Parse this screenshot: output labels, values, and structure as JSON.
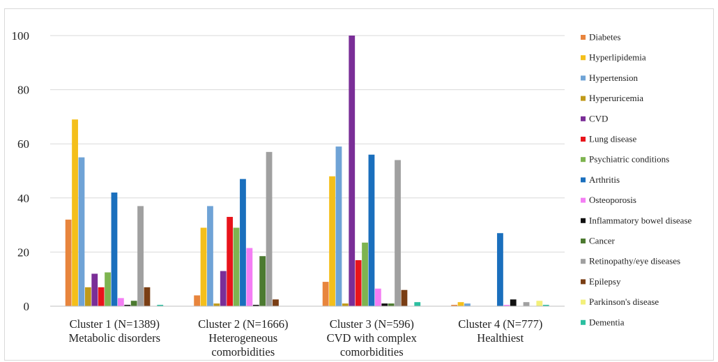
{
  "chart_data": {
    "type": "bar",
    "title": "",
    "xlabel": "",
    "ylabel": "",
    "ylim": [
      0,
      100
    ],
    "yticks": [
      0,
      20,
      40,
      60,
      80,
      100
    ],
    "grid": true,
    "legend_position": "right",
    "categories": [
      [
        "Cluster 1 (N=1389)",
        "Metabolic disorders"
      ],
      [
        "Cluster 2 (N=1666)",
        "Heterogeneous",
        "comorbidities"
      ],
      [
        "Cluster 3 (N=596)",
        "CVD with complex",
        "comorbidities"
      ],
      [
        "Cluster 4 (N=777)",
        "Healthiest"
      ]
    ],
    "series": [
      {
        "name": "Diabetes",
        "color": "#e8853d",
        "values": [
          32,
          4,
          9,
          0.5
        ]
      },
      {
        "name": "Hyperlipidemia",
        "color": "#f4bf1b",
        "values": [
          69,
          29,
          48,
          1.5
        ]
      },
      {
        "name": "Hypertension",
        "color": "#6fa3d6",
        "values": [
          55,
          37,
          59,
          1
        ]
      },
      {
        "name": "Hyperuricemia",
        "color": "#c09a1a",
        "values": [
          7,
          1,
          1,
          0
        ]
      },
      {
        "name": "CVD",
        "color": "#7a2e97",
        "values": [
          12,
          13,
          100,
          0
        ]
      },
      {
        "name": "Lung disease",
        "color": "#e8141b",
        "values": [
          7,
          33,
          17,
          0
        ]
      },
      {
        "name": "Psychiatric conditions",
        "color": "#7eb450",
        "values": [
          12.5,
          29,
          23.5,
          0
        ]
      },
      {
        "name": "Arthritis",
        "color": "#1a6fbd",
        "values": [
          42,
          47,
          56,
          27
        ]
      },
      {
        "name": "Osteoporosis",
        "color": "#f47ef4",
        "values": [
          3,
          21.5,
          6.5,
          0.5
        ]
      },
      {
        "name": "Inflammatory bowel disease",
        "color": "#111111",
        "values": [
          0.5,
          0.5,
          1,
          2.5
        ]
      },
      {
        "name": "Cancer",
        "color": "#4c7a30",
        "values": [
          2,
          18.5,
          1,
          0
        ]
      },
      {
        "name": "Retinopathy/eye diseases",
        "color": "#a0a0a0",
        "values": [
          37,
          57,
          54,
          1.5
        ]
      },
      {
        "name": "Epilepsy",
        "color": "#7a3e14",
        "values": [
          7,
          2.5,
          6,
          0
        ]
      },
      {
        "name": "Parkinson's disease",
        "color": "#f3f07a",
        "values": [
          0,
          0,
          0,
          2
        ]
      },
      {
        "name": "Dementia",
        "color": "#2bbfa0",
        "values": [
          0.5,
          0,
          1.5,
          0.5
        ]
      }
    ]
  }
}
